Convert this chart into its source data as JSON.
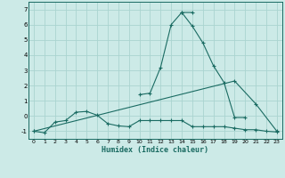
{
  "bg_color": "#cceae7",
  "grid_color": "#aad4d0",
  "line_color": "#1a6b62",
  "xlabel": "Humidex (Indice chaleur)",
  "xlim": [
    -0.5,
    23.5
  ],
  "ylim": [
    -1.5,
    7.5
  ],
  "xticks": [
    0,
    1,
    2,
    3,
    4,
    5,
    6,
    7,
    8,
    9,
    10,
    11,
    12,
    13,
    14,
    15,
    16,
    17,
    18,
    19,
    20,
    21,
    22,
    23
  ],
  "yticks": [
    -1,
    0,
    1,
    2,
    3,
    4,
    5,
    6,
    7
  ],
  "series": [
    {
      "x": [
        0,
        1,
        2,
        3,
        4,
        5,
        6,
        7,
        8,
        9,
        10,
        11,
        12,
        13,
        14,
        15,
        16,
        17,
        18,
        19,
        20,
        21,
        22,
        23
      ],
      "y": [
        -1.0,
        -1.1,
        -0.4,
        -0.3,
        0.25,
        0.3,
        0.05,
        -0.5,
        -0.65,
        -0.7,
        -0.3,
        -0.3,
        -0.3,
        -0.3,
        -0.3,
        -0.7,
        -0.7,
        -0.7,
        -0.7,
        -0.8,
        -0.9,
        -0.9,
        -1.0,
        -1.05
      ]
    },
    {
      "x": [
        10,
        11,
        12,
        13,
        14,
        15
      ],
      "y": [
        1.4,
        1.5,
        3.2,
        6.0,
        6.8,
        6.8
      ]
    },
    {
      "x": [
        14,
        15,
        16,
        17,
        18,
        19,
        20
      ],
      "y": [
        6.8,
        5.9,
        4.8,
        3.3,
        2.2,
        -0.1,
        -0.1
      ]
    },
    {
      "x": [
        0,
        19,
        21,
        23
      ],
      "y": [
        -1.0,
        2.3,
        0.8,
        -1.0
      ]
    }
  ]
}
